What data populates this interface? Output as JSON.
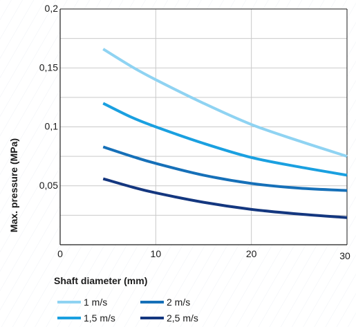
{
  "chart_data": {
    "type": "line",
    "xlabel": "Shaft diameter  (mm)",
    "ylabel": "Max. pressure  (MPa)",
    "xlim": [
      0,
      30
    ],
    "ylim": [
      0,
      0.2
    ],
    "x_ticks": [
      {
        "value": 0,
        "label": "0"
      },
      {
        "value": 10,
        "label": "10"
      },
      {
        "value": 20,
        "label": "20"
      },
      {
        "value": 30,
        "label": "30"
      }
    ],
    "y_ticks": [
      {
        "value": 0.05,
        "label": "0,05"
      },
      {
        "value": 0.1,
        "label": "0,1"
      },
      {
        "value": 0.15,
        "label": "0,15"
      },
      {
        "value": 0.2,
        "label": "0,2"
      }
    ],
    "grid": true,
    "legend_position": "bottom-left",
    "series": [
      {
        "name": "1 m/s",
        "color": "#8fd3f2",
        "x": [
          4.5,
          7.5,
          10,
          15,
          20,
          25,
          30
        ],
        "y": [
          0.166,
          0.151,
          0.14,
          0.12,
          0.102,
          0.088,
          0.075
        ]
      },
      {
        "name": "1,5 m/s",
        "color": "#1aa0e0",
        "x": [
          4.5,
          7.5,
          10,
          15,
          20,
          25,
          30
        ],
        "y": [
          0.12,
          0.108,
          0.1,
          0.086,
          0.074,
          0.066,
          0.059
        ]
      },
      {
        "name": "2 m/s",
        "color": "#1670b8",
        "x": [
          4.5,
          7.5,
          10,
          15,
          20,
          25,
          30
        ],
        "y": [
          0.083,
          0.075,
          0.069,
          0.059,
          0.052,
          0.048,
          0.046
        ]
      },
      {
        "name": "2,5 m/s",
        "color": "#14377f",
        "x": [
          4.5,
          7.5,
          10,
          15,
          20,
          25,
          30
        ],
        "y": [
          0.056,
          0.049,
          0.044,
          0.036,
          0.03,
          0.026,
          0.023
        ]
      }
    ]
  }
}
